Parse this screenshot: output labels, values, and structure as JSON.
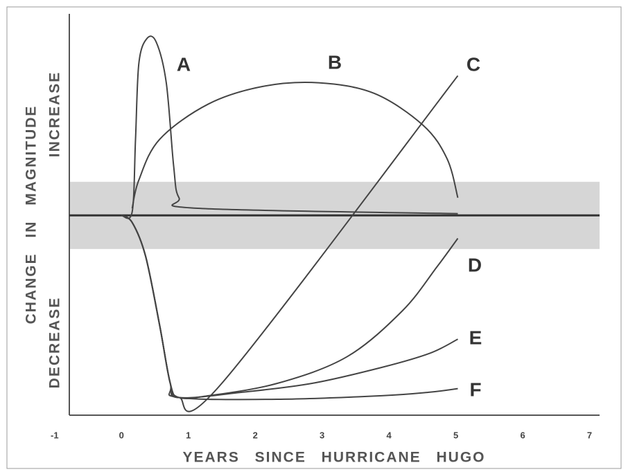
{
  "chart_data": {
    "type": "line",
    "xlabel": "YEARS SINCE HURRICANE HUGO",
    "ylabel": "CHANGE IN MAGNITUDE",
    "ylabel_upper": "INCREASE",
    "ylabel_lower": "DECREASE",
    "xlim": [
      -0.78,
      7.15
    ],
    "xticks": [
      -1,
      0,
      1,
      2,
      3,
      4,
      5,
      6,
      7
    ],
    "ylim": [
      -1.13,
      1.14
    ],
    "band": [
      -0.19,
      0.19
    ],
    "series": [
      {
        "name": "A",
        "color": "#444",
        "x": [
          0,
          0.16,
          0.21,
          0.26,
          0.38,
          0.52,
          0.67,
          0.78,
          0.86,
          1.14,
          5.03
        ],
        "values": [
          0,
          0.02,
          0.43,
          0.86,
          1.0,
          0.98,
          0.75,
          0.28,
          0.1,
          0.04,
          0.01
        ]
      },
      {
        "name": "B",
        "color": "#444",
        "x": [
          0.16,
          0.26,
          0.57,
          1.3,
          2.12,
          2.95,
          3.78,
          4.51,
          4.87,
          5.03
        ],
        "values": [
          0.04,
          0.2,
          0.43,
          0.63,
          0.73,
          0.75,
          0.69,
          0.51,
          0.32,
          0.1
        ]
      },
      {
        "name": "C",
        "color": "#444",
        "x": [
          0,
          0.16,
          0.36,
          0.57,
          0.73,
          0.86,
          1.5,
          5.03
        ],
        "values": [
          0,
          -0.04,
          -0.23,
          -0.62,
          -0.95,
          -1.03,
          -0.95,
          0.79
        ]
      },
      {
        "name": "D",
        "color": "#444",
        "x": [
          0,
          0.16,
          0.36,
          0.57,
          0.73,
          0.86,
          1.3,
          2.33,
          3.37,
          4.2,
          4.72,
          5.03
        ],
        "values": [
          0,
          -0.04,
          -0.23,
          -0.62,
          -0.95,
          -1.03,
          -1.02,
          -0.95,
          -0.8,
          -0.54,
          -0.29,
          -0.13
        ]
      },
      {
        "name": "E",
        "color": "#444",
        "x": [
          0,
          0.16,
          0.36,
          0.57,
          0.73,
          0.86,
          1.81,
          2.85,
          3.89,
          4.61,
          5.03
        ],
        "values": [
          0,
          -0.04,
          -0.23,
          -0.62,
          -0.95,
          -1.03,
          -1.0,
          -0.95,
          -0.86,
          -0.78,
          -0.7
        ]
      },
      {
        "name": "F",
        "color": "#444",
        "x": [
          0,
          0.16,
          0.36,
          0.57,
          0.73,
          0.86,
          2.33,
          3.89,
          4.61,
          5.03
        ],
        "values": [
          0,
          -0.04,
          -0.23,
          -0.62,
          -0.95,
          -1.03,
          -1.04,
          -1.02,
          -1.0,
          -0.98
        ]
      }
    ]
  }
}
